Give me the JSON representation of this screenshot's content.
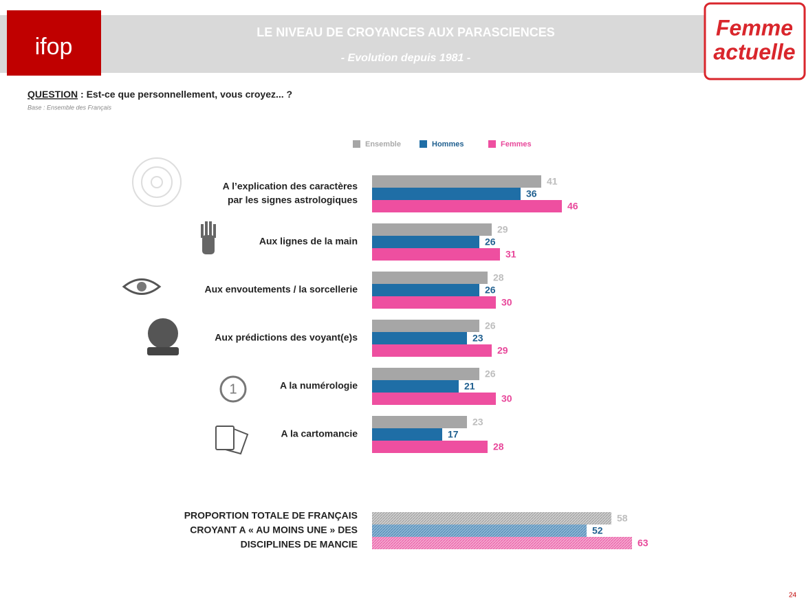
{
  "header": {
    "logo_left": "ifop",
    "title": "LE NIVEAU DE CROYANCES AUX PARASCIENCES",
    "subtitle": "- Evolution depuis 1981 -",
    "logo_right": [
      "Femme",
      "actuelle"
    ]
  },
  "question": {
    "label": "QUESTION",
    "text": " :  Est-ce que personnellement, vous croyez... ?",
    "base": "Base : Ensemble des Français"
  },
  "chart_data": [
    {
      "type": "bar",
      "orientation": "horizontal",
      "categories": [
        [
          "A l’explication des caractères",
          "par les signes astrologiques"
        ],
        [
          "Aux lignes de la main"
        ],
        [
          "Aux envoutements / la sorcellerie"
        ],
        [
          "Aux prédictions des voyant(e)s"
        ],
        [
          "A la numérologie"
        ],
        [
          "A la cartomancie"
        ]
      ],
      "series": [
        {
          "name": "Ensemble",
          "color": "#a6a6a6",
          "values": [
            41,
            29,
            28,
            26,
            26,
            23
          ]
        },
        {
          "name": "Hommes",
          "color": "#1f6ea6",
          "values": [
            36,
            26,
            26,
            23,
            21,
            17
          ]
        },
        {
          "name": "Femmes",
          "color": "#ee4fa0",
          "values": [
            46,
            31,
            30,
            29,
            30,
            28
          ]
        }
      ]
    },
    {
      "type": "bar",
      "orientation": "horizontal",
      "hatched": true,
      "categories": [
        [
          "PROPORTION TOTALE DE FRANÇAIS",
          "CROYANT A  « AU MOINS UNE » DES",
          "DISCIPLINES DE MANCIE"
        ]
      ],
      "series": [
        {
          "color": "#a6a6a6",
          "values": [
            58
          ]
        },
        {
          "color": "#1f6ea6",
          "values": [
            52
          ]
        },
        {
          "color": "#ee4fa0",
          "values": [
            63
          ]
        }
      ]
    }
  ],
  "page_number": "24"
}
